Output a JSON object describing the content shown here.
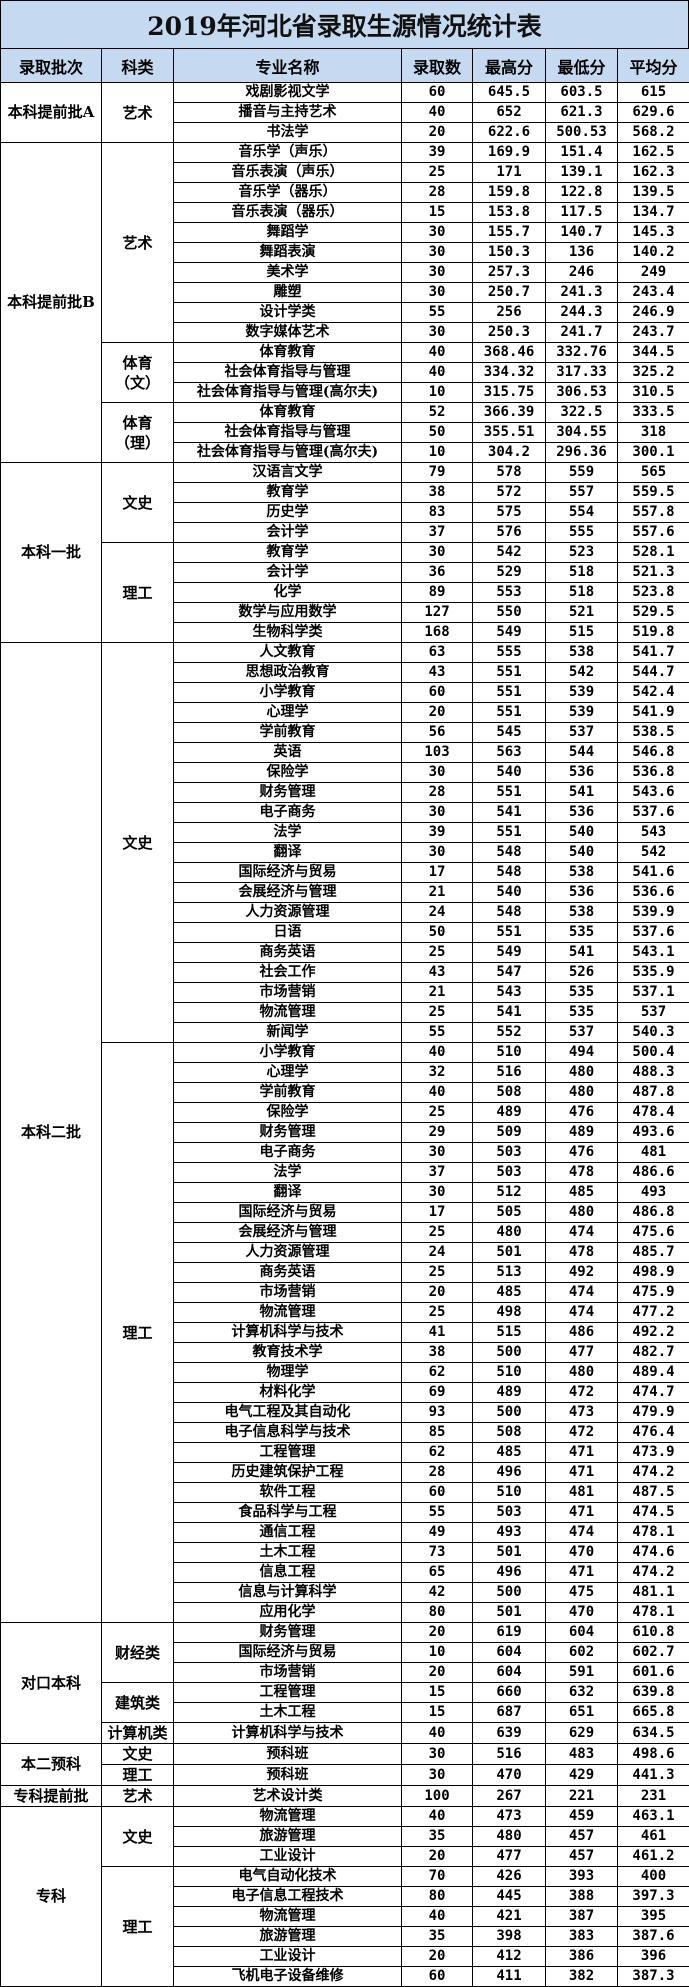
{
  "title": "2019年河北省录取生源情况统计表",
  "colors": {
    "header_bg": "#c5d9f1",
    "border": "#000000"
  },
  "headers": [
    "录取批次",
    "科类",
    "专业名称",
    "录取数",
    "最高分",
    "最低分",
    "平均分"
  ],
  "batches": [
    {
      "name": "本科提前批A",
      "groups": [
        {
          "category": "艺术",
          "rows": [
            [
              "戏剧影视文学",
              "60",
              "645.5",
              "603.5",
              "615"
            ],
            [
              "播音与主持艺术",
              "40",
              "652",
              "621.3",
              "629.6"
            ],
            [
              "书法学",
              "20",
              "622.6",
              "500.53",
              "568.2"
            ]
          ]
        }
      ]
    },
    {
      "name": "本科提前批B",
      "groups": [
        {
          "category": "艺术",
          "rows": [
            [
              "音乐学（声乐）",
              "39",
              "169.9",
              "151.4",
              "162.5"
            ],
            [
              "音乐表演（声乐）",
              "25",
              "171",
              "139.1",
              "162.3"
            ],
            [
              "音乐学（器乐）",
              "28",
              "159.8",
              "122.8",
              "139.5"
            ],
            [
              "音乐表演（器乐）",
              "15",
              "153.8",
              "117.5",
              "134.7"
            ],
            [
              "舞蹈学",
              "30",
              "155.7",
              "140.7",
              "145.3"
            ],
            [
              "舞蹈表演",
              "30",
              "150.3",
              "136",
              "140.2"
            ],
            [
              "美术学",
              "30",
              "257.3",
              "246",
              "249"
            ],
            [
              "雕塑",
              "30",
              "250.7",
              "241.3",
              "243.4"
            ],
            [
              "设计学类",
              "55",
              "256",
              "244.3",
              "246.9"
            ],
            [
              "数字媒体艺术",
              "30",
              "250.3",
              "241.7",
              "243.7"
            ]
          ]
        },
        {
          "category": "体育（文）",
          "rows": [
            [
              "体育教育",
              "40",
              "368.46",
              "332.76",
              "344.5"
            ],
            [
              "社会体育指导与管理",
              "40",
              "334.32",
              "317.33",
              "325.2"
            ],
            [
              "社会体育指导与管理(高尔夫)",
              "10",
              "315.75",
              "306.53",
              "310.5"
            ]
          ]
        },
        {
          "category": "体育（理）",
          "rows": [
            [
              "体育教育",
              "52",
              "366.39",
              "322.5",
              "333.5"
            ],
            [
              "社会体育指导与管理",
              "50",
              "355.51",
              "304.55",
              "318"
            ],
            [
              "社会体育指导与管理(高尔夫)",
              "10",
              "304.2",
              "296.36",
              "300.1"
            ]
          ]
        }
      ]
    },
    {
      "name": "本科一批",
      "groups": [
        {
          "category": "文史",
          "rows": [
            [
              "汉语言文学",
              "79",
              "578",
              "559",
              "565"
            ],
            [
              "教育学",
              "38",
              "572",
              "557",
              "559.5"
            ],
            [
              "历史学",
              "83",
              "575",
              "554",
              "557.8"
            ],
            [
              "会计学",
              "37",
              "576",
              "555",
              "557.6"
            ]
          ]
        },
        {
          "category": "理工",
          "rows": [
            [
              "教育学",
              "30",
              "542",
              "523",
              "528.1"
            ],
            [
              "会计学",
              "36",
              "529",
              "518",
              "521.3"
            ],
            [
              "化学",
              "89",
              "553",
              "518",
              "523.8"
            ],
            [
              "数学与应用数学",
              "127",
              "550",
              "521",
              "529.5"
            ],
            [
              "生物科学类",
              "168",
              "549",
              "515",
              "519.8"
            ]
          ]
        }
      ]
    },
    {
      "name": "本科二批",
      "groups": [
        {
          "category": "文史",
          "rows": [
            [
              "人文教育",
              "63",
              "555",
              "538",
              "541.7"
            ],
            [
              "思想政治教育",
              "43",
              "551",
              "542",
              "544.7"
            ],
            [
              "小学教育",
              "60",
              "551",
              "539",
              "542.4"
            ],
            [
              "心理学",
              "20",
              "551",
              "539",
              "541.9"
            ],
            [
              "学前教育",
              "56",
              "545",
              "537",
              "538.5"
            ],
            [
              "英语",
              "103",
              "563",
              "544",
              "546.8"
            ],
            [
              "保险学",
              "30",
              "540",
              "536",
              "536.8"
            ],
            [
              "财务管理",
              "28",
              "551",
              "541",
              "543.6"
            ],
            [
              "电子商务",
              "30",
              "541",
              "536",
              "537.6"
            ],
            [
              "法学",
              "39",
              "551",
              "540",
              "543"
            ],
            [
              "翻译",
              "30",
              "548",
              "540",
              "542"
            ],
            [
              "国际经济与贸易",
              "17",
              "548",
              "538",
              "541.6"
            ],
            [
              "会展经济与管理",
              "21",
              "540",
              "536",
              "536.6"
            ],
            [
              "人力资源管理",
              "24",
              "548",
              "538",
              "539.9"
            ],
            [
              "日语",
              "50",
              "551",
              "535",
              "537.6"
            ],
            [
              "商务英语",
              "25",
              "549",
              "541",
              "543.1"
            ],
            [
              "社会工作",
              "43",
              "547",
              "526",
              "535.9"
            ],
            [
              "市场营销",
              "21",
              "543",
              "535",
              "537.1"
            ],
            [
              "物流管理",
              "25",
              "541",
              "535",
              "537"
            ],
            [
              "新闻学",
              "55",
              "552",
              "537",
              "540.3"
            ]
          ]
        },
        {
          "category": "理工",
          "rows": [
            [
              "小学教育",
              "40",
              "510",
              "494",
              "500.4"
            ],
            [
              "心理学",
              "32",
              "516",
              "480",
              "488.3"
            ],
            [
              "学前教育",
              "40",
              "508",
              "480",
              "487.8"
            ],
            [
              "保险学",
              "25",
              "489",
              "476",
              "478.4"
            ],
            [
              "财务管理",
              "29",
              "509",
              "489",
              "493.6"
            ],
            [
              "电子商务",
              "30",
              "503",
              "476",
              "481"
            ],
            [
              "法学",
              "37",
              "503",
              "478",
              "486.6"
            ],
            [
              "翻译",
              "30",
              "512",
              "485",
              "493"
            ],
            [
              "国际经济与贸易",
              "17",
              "505",
              "480",
              "486.8"
            ],
            [
              "会展经济与管理",
              "25",
              "480",
              "474",
              "475.6"
            ],
            [
              "人力资源管理",
              "24",
              "501",
              "478",
              "485.7"
            ],
            [
              "商务英语",
              "25",
              "513",
              "492",
              "498.9"
            ],
            [
              "市场营销",
              "20",
              "485",
              "474",
              "475.9"
            ],
            [
              "物流管理",
              "25",
              "498",
              "474",
              "477.2"
            ],
            [
              "计算机科学与技术",
              "41",
              "515",
              "486",
              "492.2"
            ],
            [
              "教育技术学",
              "38",
              "500",
              "477",
              "482.7"
            ],
            [
              "物理学",
              "62",
              "510",
              "480",
              "489.4"
            ],
            [
              "材料化学",
              "69",
              "489",
              "472",
              "474.7"
            ],
            [
              "电气工程及其自动化",
              "93",
              "500",
              "473",
              "479.9"
            ],
            [
              "电子信息科学与技术",
              "85",
              "508",
              "472",
              "476.4"
            ],
            [
              "工程管理",
              "62",
              "485",
              "471",
              "473.9"
            ],
            [
              "历史建筑保护工程",
              "28",
              "496",
              "471",
              "474.2"
            ],
            [
              "软件工程",
              "60",
              "510",
              "481",
              "487.5"
            ],
            [
              "食品科学与工程",
              "55",
              "503",
              "471",
              "474.5"
            ],
            [
              "通信工程",
              "49",
              "493",
              "474",
              "478.1"
            ],
            [
              "土木工程",
              "73",
              "501",
              "470",
              "474.6"
            ],
            [
              "信息工程",
              "65",
              "496",
              "471",
              "474.2"
            ],
            [
              "信息与计算科学",
              "42",
              "500",
              "475",
              "481.1"
            ],
            [
              "应用化学",
              "80",
              "501",
              "470",
              "478.1"
            ]
          ]
        }
      ]
    },
    {
      "name": "对口本科",
      "groups": [
        {
          "category": "财经类",
          "rows": [
            [
              "财务管理",
              "20",
              "619",
              "604",
              "610.8"
            ],
            [
              "国际经济与贸易",
              "10",
              "604",
              "602",
              "602.7"
            ],
            [
              "市场营销",
              "20",
              "604",
              "591",
              "601.6"
            ]
          ]
        },
        {
          "category": "建筑类",
          "rows": [
            [
              "工程管理",
              "15",
              "660",
              "632",
              "639.8"
            ],
            [
              "土木工程",
              "15",
              "687",
              "651",
              "665.8"
            ]
          ]
        },
        {
          "category": "计算机类",
          "rows": [
            [
              "计算机科学与技术",
              "40",
              "639",
              "629",
              "634.5"
            ]
          ]
        }
      ]
    },
    {
      "name": "本二预科",
      "groups": [
        {
          "category": "文史",
          "rows": [
            [
              "预科班",
              "30",
              "516",
              "483",
              "498.6"
            ]
          ]
        },
        {
          "category": "理工",
          "rows": [
            [
              "预科班",
              "30",
              "470",
              "429",
              "441.3"
            ]
          ]
        }
      ]
    },
    {
      "name": "专科提前批",
      "groups": [
        {
          "category": "艺术",
          "rows": [
            [
              "艺术设计类",
              "100",
              "267",
              "221",
              "231"
            ]
          ]
        }
      ]
    },
    {
      "name": "专科",
      "groups": [
        {
          "category": "文史",
          "rows": [
            [
              "物流管理",
              "40",
              "473",
              "459",
              "463.1"
            ],
            [
              "旅游管理",
              "35",
              "480",
              "457",
              "461"
            ],
            [
              "工业设计",
              "20",
              "477",
              "457",
              "461.2"
            ]
          ]
        },
        {
          "category": "理工",
          "rows": [
            [
              "电气自动化技术",
              "70",
              "426",
              "393",
              "400"
            ],
            [
              "电子信息工程技术",
              "80",
              "445",
              "388",
              "397.3"
            ],
            [
              "物流管理",
              "40",
              "421",
              "387",
              "395"
            ],
            [
              "旅游管理",
              "35",
              "398",
              "383",
              "387.6"
            ],
            [
              "工业设计",
              "20",
              "412",
              "386",
              "396"
            ],
            [
              "飞机电子设备维修",
              "60",
              "411",
              "382",
              "387.3"
            ]
          ]
        }
      ]
    }
  ]
}
